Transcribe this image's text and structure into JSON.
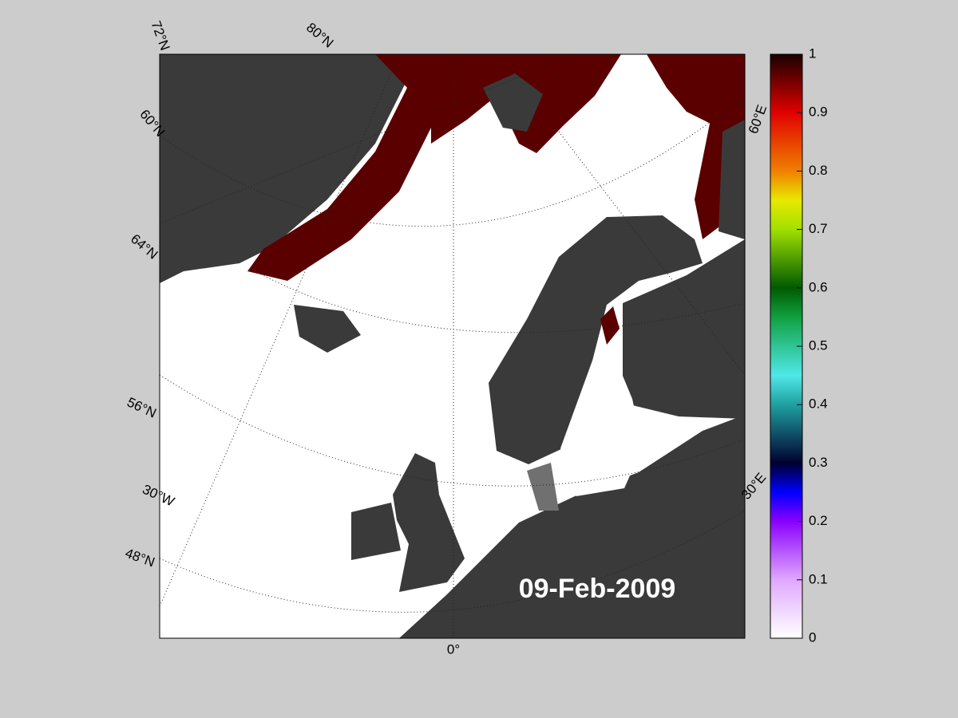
{
  "map": {
    "date": "09-Feb-2009",
    "graticule_labels": [
      "72°N",
      "80°N",
      "60°N",
      "64°N",
      "56°N",
      "30°W",
      "48°N",
      "0°",
      "60°E",
      "30°E"
    ]
  },
  "colorbar": {
    "ylim": [
      0,
      1
    ],
    "yticks": [
      0,
      0.1,
      0.2,
      0.3,
      0.4,
      0.5,
      0.6,
      0.7,
      0.8,
      0.9,
      1
    ]
  }
}
